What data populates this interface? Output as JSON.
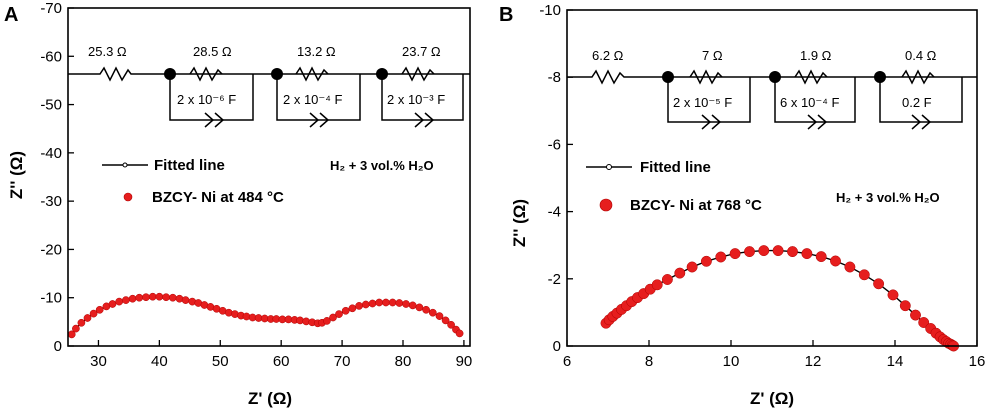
{
  "chart_data": [
    {
      "type": "scatter",
      "panel": "A",
      "xlabel": "Z' (Ω)",
      "ylabel": "Z'' (Ω)",
      "xlim": [
        25,
        91
      ],
      "ylim": [
        0,
        -70
      ],
      "xticks": [
        "30",
        "40",
        "50",
        "60",
        "70",
        "80",
        "90"
      ],
      "xtick_values": [
        30,
        40,
        50,
        60,
        70,
        80,
        90
      ],
      "yticks": [
        "0",
        "-10",
        "-20",
        "-30",
        "-40",
        "-50",
        "-60",
        "-70"
      ],
      "ytick_values": [
        0,
        -10,
        -20,
        -30,
        -40,
        -50,
        -60,
        -70
      ],
      "legend": {
        "fit": "Fitted line",
        "data": "BZCY- Ni at 484 °C"
      },
      "condition": "H₂ + 3 vol.% H₂O",
      "circuit": {
        "series_resistance": "25.3 Ω",
        "elements": [
          {
            "resistance": "28.5 Ω",
            "capacitance": "2 x 10⁻⁶ F"
          },
          {
            "resistance": "13.2 Ω",
            "capacitance": "2 x 10⁻⁴ F"
          },
          {
            "resistance": "23.7 Ω",
            "capacitance": "2 x 10⁻³ F"
          }
        ]
      },
      "series": [
        {
          "name": "BZCY- Ni at 484 °C",
          "x": [
            25.6,
            26.3,
            27.2,
            28.2,
            29.2,
            30.2,
            31.3,
            32.3,
            33.4,
            34.5,
            35.6,
            36.7,
            37.8,
            38.9,
            40.0,
            41.1,
            42.2,
            43.3,
            44.3,
            45.4,
            46.4,
            47.4,
            48.4,
            49.4,
            50.4,
            51.4,
            52.4,
            53.4,
            54.3,
            55.3,
            56.3,
            57.3,
            58.3,
            59.2,
            60.2,
            61.2,
            62.2,
            63.1,
            64.1,
            65.1,
            66.0,
            66.7,
            67.5,
            68.5,
            69.5,
            70.6,
            71.7,
            72.8,
            73.9,
            75.0,
            76.1,
            77.2,
            78.3,
            79.4,
            80.5,
            81.6,
            82.7,
            83.8,
            84.9,
            86.0,
            87.0,
            87.9,
            88.7,
            89.3
          ],
          "y": [
            -2.4,
            -3.6,
            -4.8,
            -5.8,
            -6.7,
            -7.5,
            -8.2,
            -8.7,
            -9.2,
            -9.5,
            -9.8,
            -10.0,
            -10.1,
            -10.2,
            -10.2,
            -10.1,
            -10.0,
            -9.8,
            -9.5,
            -9.2,
            -8.9,
            -8.5,
            -8.1,
            -7.7,
            -7.3,
            -6.9,
            -6.6,
            -6.3,
            -6.1,
            -5.9,
            -5.8,
            -5.7,
            -5.6,
            -5.6,
            -5.5,
            -5.5,
            -5.4,
            -5.3,
            -5.1,
            -4.9,
            -4.7,
            -4.8,
            -5.2,
            -5.9,
            -6.6,
            -7.3,
            -7.8,
            -8.3,
            -8.6,
            -8.8,
            -9.0,
            -9.0,
            -9.0,
            -8.9,
            -8.7,
            -8.4,
            -8.0,
            -7.5,
            -6.9,
            -6.2,
            -5.3,
            -4.4,
            -3.4,
            -2.6
          ]
        }
      ]
    },
    {
      "type": "scatter",
      "panel": "B",
      "xlabel": "Z' (Ω)",
      "ylabel": "Z'' (Ω)",
      "xlim": [
        6,
        16
      ],
      "ylim": [
        0,
        -10
      ],
      "xticks": [
        "6",
        "8",
        "10",
        "12",
        "14",
        "16"
      ],
      "xtick_values": [
        6,
        8,
        10,
        12,
        14,
        16
      ],
      "yticks": [
        "0",
        "-2",
        "-4",
        "-6",
        "-8",
        "-10"
      ],
      "ytick_values": [
        0,
        -2,
        -4,
        -6,
        -8,
        -10
      ],
      "legend": {
        "fit": "Fitted line",
        "data": "BZCY- Ni at 768 °C"
      },
      "condition": "H₂ + 3 vol.% H₂O",
      "circuit": {
        "series_resistance": "6.2 Ω",
        "elements": [
          {
            "resistance": "7 Ω",
            "capacitance": "2 x 10⁻⁵ F"
          },
          {
            "resistance": "1.9 Ω",
            "capacitance": "6 x 10⁻⁴ F"
          },
          {
            "resistance": "0.4 Ω",
            "capacitance": "0.2 F"
          }
        ]
      },
      "series": [
        {
          "name": "BZCY- Ni at 768 °C",
          "x": [
            6.95,
            7.03,
            7.12,
            7.22,
            7.33,
            7.45,
            7.58,
            7.72,
            7.87,
            8.03,
            8.2,
            8.45,
            8.75,
            9.05,
            9.4,
            9.75,
            10.1,
            10.45,
            10.8,
            11.15,
            11.5,
            11.85,
            12.2,
            12.55,
            12.9,
            13.25,
            13.6,
            13.95,
            14.25,
            14.5,
            14.7,
            14.87,
            15.0,
            15.1,
            15.18,
            15.25,
            15.31,
            15.36,
            15.4,
            15.43
          ],
          "y": [
            -0.68,
            -0.78,
            -0.88,
            -0.98,
            -1.09,
            -1.2,
            -1.32,
            -1.44,
            -1.56,
            -1.69,
            -1.82,
            -1.98,
            -2.17,
            -2.35,
            -2.52,
            -2.65,
            -2.75,
            -2.81,
            -2.84,
            -2.84,
            -2.81,
            -2.75,
            -2.66,
            -2.53,
            -2.35,
            -2.12,
            -1.85,
            -1.52,
            -1.2,
            -0.92,
            -0.7,
            -0.52,
            -0.38,
            -0.27,
            -0.19,
            -0.13,
            -0.08,
            -0.05,
            -0.02,
            0.0
          ]
        }
      ]
    }
  ]
}
